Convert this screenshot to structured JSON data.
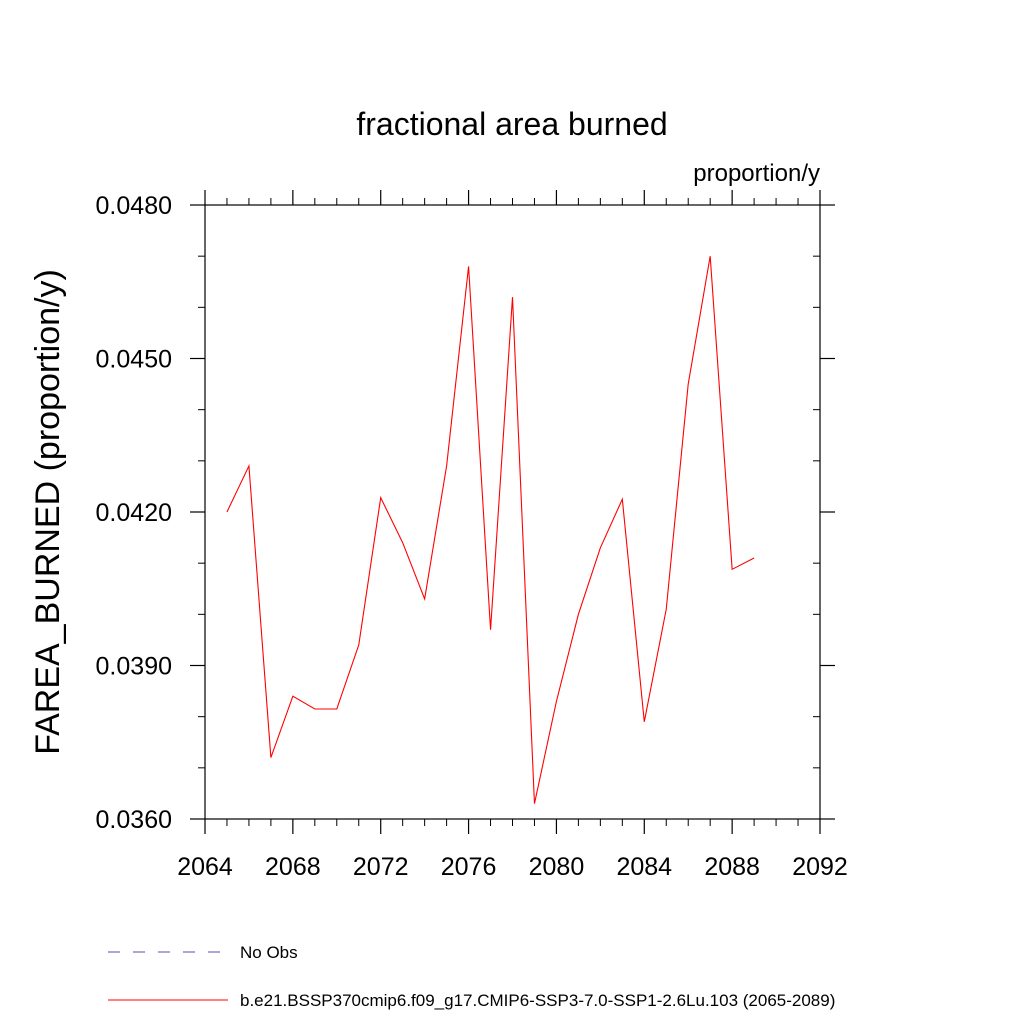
{
  "chart_data": {
    "type": "line",
    "title": "fractional area burned",
    "units": "proportion/y",
    "ylabel": "FAREA_BURNED  (proportion/y)",
    "xlabel": "",
    "xlim": [
      2064,
      2092
    ],
    "ylim": [
      0.036,
      0.048
    ],
    "x_ticks": [
      2064,
      2068,
      2072,
      2076,
      2080,
      2084,
      2088,
      2092
    ],
    "x_tick_labels": [
      "2064",
      "2068",
      "2072",
      "2076",
      "2080",
      "2084",
      "2088",
      "2092"
    ],
    "x_minor_step": 1,
    "y_ticks": [
      0.036,
      0.039,
      0.042,
      0.045,
      0.048
    ],
    "y_tick_labels": [
      "0.0360",
      "0.0390",
      "0.0420",
      "0.0450",
      "0.0480"
    ],
    "y_minor_step": 0.001,
    "grid": false,
    "legend_position": "bottom",
    "series": [
      {
        "name": "b.e21.BSSP370cmip6.f09_g17.CMIP6-SSP3-7.0-SSP1-2.6Lu.103 (2065-2089)",
        "color": "#ff0000",
        "dash": "solid",
        "x": [
          2065,
          2066,
          2067,
          2068,
          2069,
          2070,
          2071,
          2072,
          2073,
          2074,
          2075,
          2076,
          2077,
          2078,
          2079,
          2080,
          2081,
          2082,
          2083,
          2084,
          2085,
          2086,
          2087,
          2088,
          2089
        ],
        "values": [
          0.042,
          0.0429,
          0.0372,
          0.0384,
          0.03815,
          0.03815,
          0.0394,
          0.04228,
          0.0414,
          0.0403,
          0.0429,
          0.0468,
          0.0397,
          0.0462,
          0.0363,
          0.0383,
          0.04,
          0.0413,
          0.04225,
          0.0379,
          0.0401,
          0.0445,
          0.047,
          0.04088,
          0.0411
        ]
      }
    ],
    "legend": [
      {
        "label": "No Obs",
        "color": "#5a4fb0",
        "dash": "dashed"
      },
      {
        "label": "b.e21.BSSP370cmip6.f09_g17.CMIP6-SSP3-7.0-SSP1-2.6Lu.103 (2065-2089)",
        "color": "#ff0000",
        "dash": "solid"
      }
    ]
  }
}
